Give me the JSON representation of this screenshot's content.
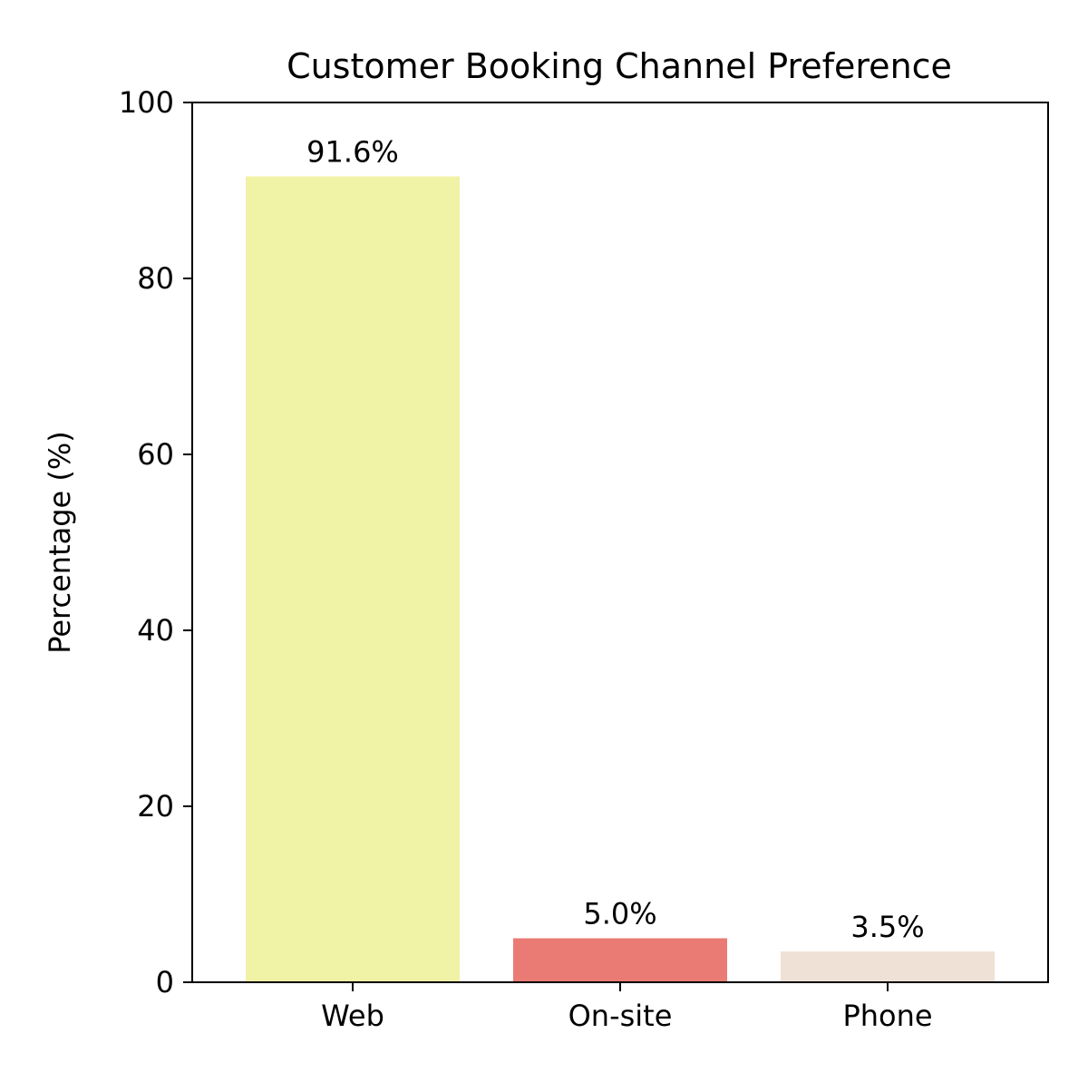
{
  "chart_data": {
    "type": "bar",
    "title": "Customer Booking Channel Preference",
    "xlabel": "",
    "ylabel": "Percentage (%)",
    "categories": [
      "Web",
      "On-site",
      "Phone"
    ],
    "values": [
      91.6,
      5.0,
      3.5
    ],
    "value_labels": [
      "91.6%",
      "5.0%",
      "3.5%"
    ],
    "colors": [
      "#f0f2a5",
      "#ea7b74",
      "#f0e1d6"
    ],
    "ylim": [
      0,
      100
    ],
    "yticks": [
      0,
      20,
      40,
      60,
      80,
      100
    ],
    "ytick_labels": [
      "0",
      "20",
      "40",
      "60",
      "80",
      "100"
    ],
    "grid": false,
    "legend": "none"
  }
}
